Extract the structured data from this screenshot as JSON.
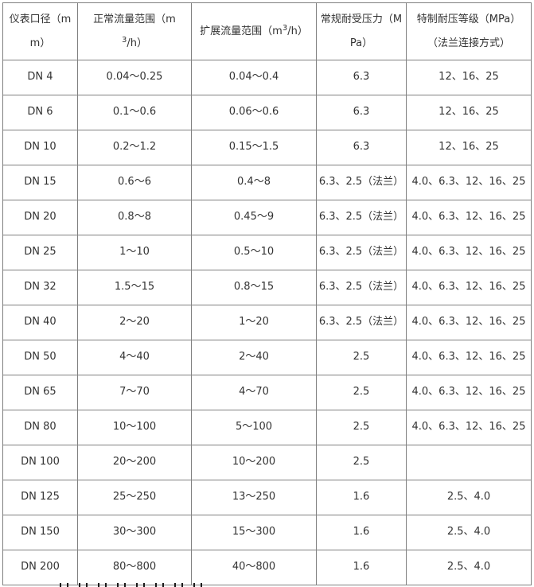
{
  "table": {
    "headers": {
      "diameter": "仪表口径（mm）",
      "normal_prefix": "正常流量范围（m",
      "normal_sup": "3",
      "normal_suffix": "/h）",
      "extended_prefix": "扩展流量范围（m",
      "extended_sup": "3",
      "extended_suffix": "/h）",
      "pressure": "常规耐受压力（MPa）",
      "special": "特制耐压等级（MPa）（法兰连接方式）"
    },
    "rows": [
      [
        "DN 4",
        "0.04～0.25",
        "0.04～0.4",
        "6.3",
        "12、16、25"
      ],
      [
        "DN 6",
        "0.1～0.6",
        "0.06～0.6",
        "6.3",
        "12、16、25"
      ],
      [
        "DN 10",
        "0.2～1.2",
        "0.15～1.5",
        "6.3",
        "12、16、25"
      ],
      [
        "DN 15",
        "0.6～6",
        "0.4～8",
        "6.3、2.5（法兰）",
        "4.0、6.3、12、16、25"
      ],
      [
        "DN 20",
        "0.8～8",
        "0.45～9",
        "6.3、2.5（法兰）",
        "4.0、6.3、12、16、25"
      ],
      [
        "DN 25",
        "1～10",
        "0.5～10",
        "6.3、2.5（法兰）",
        "4.0、6.3、12、16、25"
      ],
      [
        "DN 32",
        "1.5～15",
        "0.8～15",
        "6.3、2.5（法兰）",
        "4.0、6.3、12、16、25"
      ],
      [
        "DN 40",
        "2～20",
        "1～20",
        "6.3、2.5（法兰）",
        "4.0、6.3、12、16、25"
      ],
      [
        "DN 50",
        "4～40",
        "2～40",
        "2.5",
        "4.0、6.3、12、16、25"
      ],
      [
        "DN 65",
        "7～70",
        "4～70",
        "2.5",
        "4.0、6.3、12、16、25"
      ],
      [
        "DN 80",
        "10～100",
        "5～100",
        "2.5",
        "4.0、6.3、12、16、25"
      ],
      [
        "DN 100",
        "20～200",
        "10～200",
        "2.5",
        ""
      ],
      [
        "DN 125",
        "25～250",
        "13～250",
        "1.6",
        "2.5、4.0"
      ],
      [
        "DN 150",
        "30～300",
        "15～300",
        "1.6",
        "2.5、4.0"
      ],
      [
        "DN 200",
        "80～800",
        "40～800",
        "1.6",
        "2.5、4.0"
      ]
    ],
    "colors": {
      "border": "#808080",
      "text": "#333333",
      "background": "#ffffff"
    }
  }
}
